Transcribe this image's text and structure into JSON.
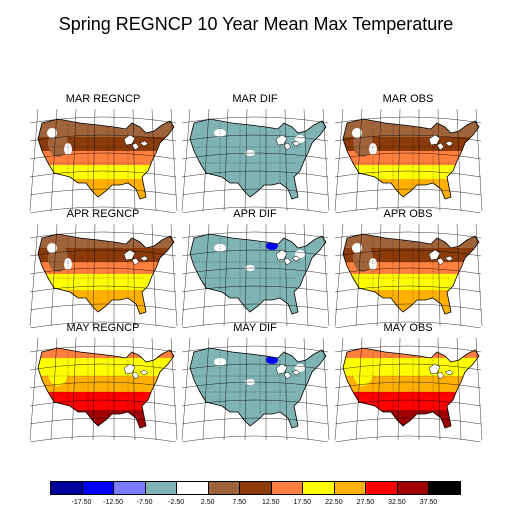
{
  "title": "Spring REGNCP 10 Year Mean Max Temperature",
  "panels": [
    {
      "id": "mar-regncp",
      "label": "MAR REGNCP",
      "kind": "temp",
      "month": 0
    },
    {
      "id": "mar-dif",
      "label": "MAR DIF",
      "kind": "dif",
      "month": 0
    },
    {
      "id": "mar-obs",
      "label": "MAR OBS",
      "kind": "temp",
      "month": 0
    },
    {
      "id": "apr-regncp",
      "label": "APR REGNCP",
      "kind": "temp",
      "month": 1
    },
    {
      "id": "apr-dif",
      "label": "APR DIF",
      "kind": "dif",
      "month": 1
    },
    {
      "id": "apr-obs",
      "label": "APR OBS",
      "kind": "temp",
      "month": 1
    },
    {
      "id": "may-regncp",
      "label": "MAY REGNCP",
      "kind": "temp",
      "month": 2
    },
    {
      "id": "may-dif",
      "label": "MAY DIF",
      "kind": "dif",
      "month": 2
    },
    {
      "id": "may-obs",
      "label": "MAY OBS",
      "kind": "temp",
      "month": 2
    }
  ],
  "colorbar": {
    "colors": [
      "#00009b",
      "#0000ff",
      "#7b7bff",
      "#80b3b3",
      "#ffffff",
      "#a0643c",
      "#8b3a0a",
      "#ff7f3f",
      "#ffff00",
      "#ffb000",
      "#ff0000",
      "#a00000",
      "#000000"
    ],
    "tick_labels": [
      "-17.50",
      "-12.50",
      "-7.50",
      "-2.50",
      "2.50",
      "7.50",
      "12.50",
      "17.50",
      "22.50",
      "27.50",
      "32.50",
      "37.50"
    ]
  }
}
